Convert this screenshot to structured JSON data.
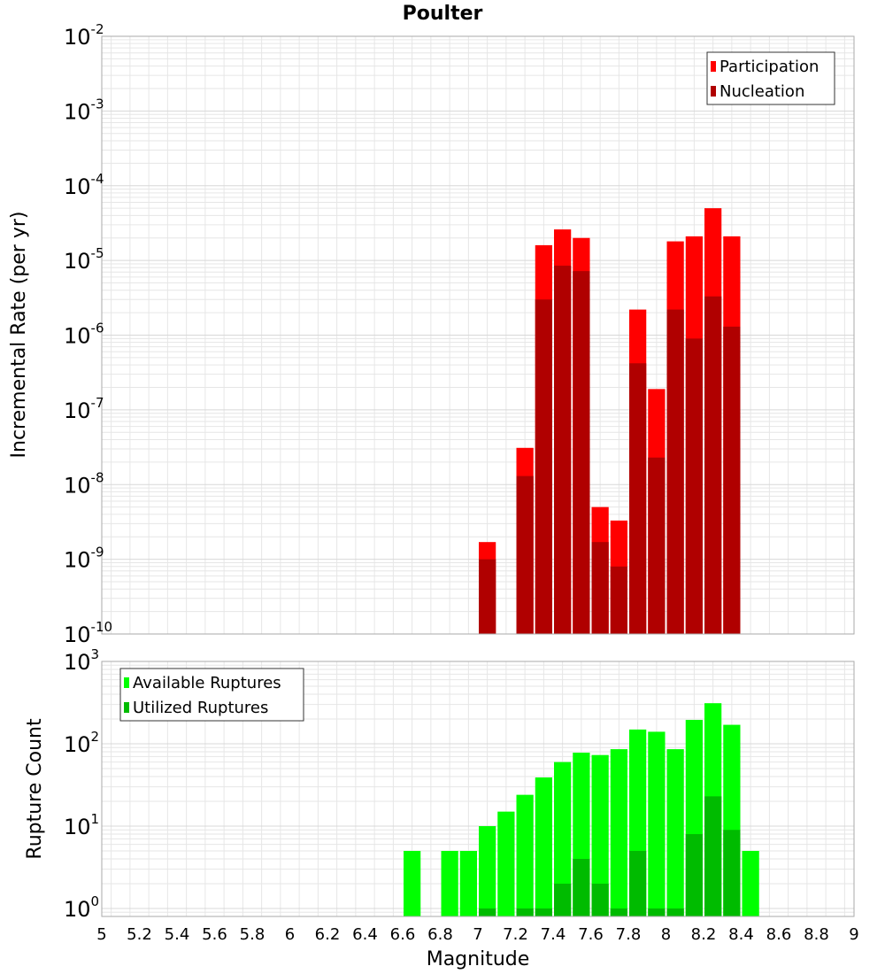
{
  "title": "Poulter",
  "xlabel": "Magnitude",
  "colors": {
    "participation": "#ff0000",
    "nucleation": "#b00000",
    "available": "#00ff00",
    "utilized": "#00bb00",
    "grid": "#e6e6e6",
    "frame": "#aaaaaa"
  },
  "chart_data": [
    {
      "type": "bar",
      "ylabel": "Incremental Rate (per yr)",
      "yscale": "log",
      "ylim": [
        1e-10,
        0.01
      ],
      "xlim": [
        5,
        9
      ],
      "grid": true,
      "legend_position": "top-right",
      "x": [
        7.05,
        7.25,
        7.35,
        7.45,
        7.55,
        7.65,
        7.75,
        7.85,
        7.95,
        8.05,
        8.15,
        8.25,
        8.35
      ],
      "series": [
        {
          "name": "Participation",
          "values": [
            1.7e-09,
            3.1e-08,
            1.6e-05,
            2.6e-05,
            2e-05,
            5e-09,
            3.3e-09,
            2.2e-06,
            1.9e-07,
            1.8e-05,
            2.1e-05,
            5e-05,
            2.1e-05
          ]
        },
        {
          "name": "Nucleation",
          "values": [
            1e-09,
            1.3e-08,
            3e-06,
            8.5e-06,
            7.2e-06,
            1.7e-09,
            8e-10,
            4.2e-07,
            2.3e-08,
            2.2e-06,
            9e-07,
            3.3e-06,
            1.3e-06
          ]
        }
      ]
    },
    {
      "type": "bar",
      "ylabel": "Rupture Count",
      "yscale": "log",
      "ylim": [
        0.8,
        1000
      ],
      "xlim": [
        5,
        9
      ],
      "grid": true,
      "legend_position": "top-left",
      "x": [
        6.65,
        6.85,
        6.95,
        7.05,
        7.15,
        7.25,
        7.35,
        7.45,
        7.55,
        7.65,
        7.75,
        7.85,
        7.95,
        8.05,
        8.15,
        8.25,
        8.35,
        8.45
      ],
      "series": [
        {
          "name": "Available Ruptures",
          "values": [
            5,
            5,
            5,
            10,
            15,
            24,
            39,
            60,
            78,
            73,
            86,
            149,
            140,
            86,
            195,
            311,
            170,
            5
          ]
        },
        {
          "name": "Utilized Ruptures",
          "values": [
            0,
            0,
            0,
            1,
            0,
            1,
            1,
            2,
            4,
            2,
            1,
            5,
            1,
            1,
            8,
            23,
            9,
            0
          ]
        }
      ]
    }
  ],
  "x_ticks": [
    "5",
    "5.2",
    "5.4",
    "5.6",
    "5.8",
    "6",
    "6.2",
    "6.4",
    "6.6",
    "6.8",
    "7",
    "7.2",
    "7.4",
    "7.6",
    "7.8",
    "8",
    "8.2",
    "8.4",
    "8.6",
    "8.8",
    "9"
  ],
  "top_y_ticks": [
    {
      "base": "10",
      "exp": "-10",
      "value": 1e-10
    },
    {
      "base": "10",
      "exp": "-9",
      "value": 1e-09
    },
    {
      "base": "10",
      "exp": "-8",
      "value": 1e-08
    },
    {
      "base": "10",
      "exp": "-7",
      "value": 1e-07
    },
    {
      "base": "10",
      "exp": "-6",
      "value": 1e-06
    },
    {
      "base": "10",
      "exp": "-5",
      "value": 1e-05
    },
    {
      "base": "10",
      "exp": "-4",
      "value": 0.0001
    },
    {
      "base": "10",
      "exp": "-3",
      "value": 0.001
    },
    {
      "base": "10",
      "exp": "-2",
      "value": 0.01
    }
  ],
  "bottom_y_ticks": [
    {
      "base": "10",
      "exp": "0",
      "value": 1
    },
    {
      "base": "10",
      "exp": "1",
      "value": 10
    },
    {
      "base": "10",
      "exp": "2",
      "value": 100
    },
    {
      "base": "10",
      "exp": "3",
      "value": 1000
    }
  ]
}
